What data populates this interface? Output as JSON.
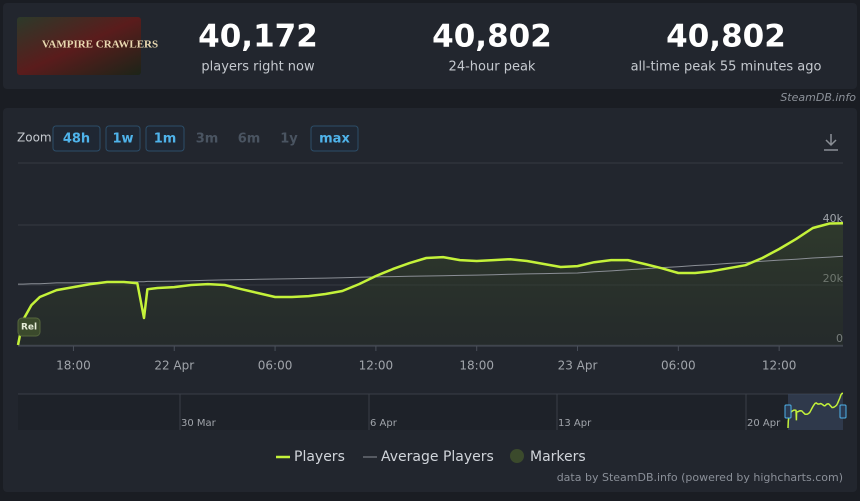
{
  "header": {
    "game_title": "VAMPIRE CRAWLERS",
    "stats": [
      {
        "value": "40,172",
        "label": "players right now"
      },
      {
        "value": "40,802",
        "label": "24-hour peak"
      },
      {
        "value": "40,802",
        "label": "all-time peak 55 minutes ago"
      }
    ]
  },
  "source": "SteamDB.info",
  "zoom": {
    "label": "Zoom",
    "buttons": [
      {
        "label": "48h",
        "enabled": true
      },
      {
        "label": "1w",
        "enabled": true
      },
      {
        "label": "1m",
        "enabled": true
      },
      {
        "label": "3m",
        "enabled": false
      },
      {
        "label": "6m",
        "enabled": false
      },
      {
        "label": "1y",
        "enabled": false
      },
      {
        "label": "max",
        "enabled": true
      }
    ]
  },
  "chart_data": {
    "type": "line",
    "x": [
      14.7,
      15,
      15.5,
      16,
      17,
      18,
      19,
      20,
      21,
      21.8,
      22.2,
      22.4,
      23,
      24,
      25,
      26,
      27,
      28,
      29,
      30,
      31,
      32,
      33,
      34,
      35,
      36,
      37,
      38,
      39,
      40,
      41,
      42,
      43,
      44,
      45,
      46,
      47,
      48,
      49,
      50,
      51,
      52,
      53,
      54,
      55,
      56,
      57,
      58,
      59,
      60,
      61,
      62,
      63,
      63.8
    ],
    "series": [
      {
        "name": "Players",
        "color": "#c4f23a",
        "values": [
          0,
          8300,
          13300,
          16000,
          18300,
          19300,
          20300,
          21000,
          21000,
          20600,
          9000,
          18600,
          19000,
          19300,
          20000,
          20300,
          20000,
          18600,
          17300,
          16000,
          16000,
          16300,
          17000,
          18000,
          20300,
          23000,
          25300,
          27300,
          29000,
          29300,
          28300,
          28000,
          28300,
          28600,
          28000,
          27000,
          26000,
          26300,
          27600,
          28300,
          28300,
          27000,
          25600,
          24000,
          24000,
          24600,
          25600,
          26600,
          29000,
          32000,
          35300,
          39000,
          40500,
          40600
        ]
      },
      {
        "name": "Average Players",
        "color": "#8a8e95",
        "values": [
          20300,
          20300,
          20400,
          20400,
          20700,
          20700,
          20800,
          20900,
          21000,
          21100,
          21100,
          21200,
          21200,
          21300,
          21400,
          21600,
          21700,
          21800,
          21900,
          22000,
          22100,
          22200,
          22300,
          22400,
          22600,
          22700,
          22800,
          22900,
          23000,
          23100,
          23200,
          23300,
          23400,
          23600,
          23700,
          23800,
          23900,
          24000,
          24400,
          24700,
          25100,
          25400,
          25800,
          26100,
          26500,
          26800,
          27200,
          27500,
          27900,
          28300,
          28600,
          29000,
          29300,
          29600
        ]
      }
    ],
    "markers": {
      "name": "Markers",
      "color": "#3b4a2c",
      "points": [
        {
          "x": 14.7,
          "label": "Rel"
        }
      ]
    },
    "xlim": [
      14.7,
      63.8
    ],
    "xticks": [
      {
        "value": 18,
        "label": "18:00"
      },
      {
        "value": 24,
        "label": "22 Apr"
      },
      {
        "value": 30,
        "label": "06:00"
      },
      {
        "value": 36,
        "label": "12:00"
      },
      {
        "value": 42,
        "label": "18:00"
      },
      {
        "value": 48,
        "label": "23 Apr"
      },
      {
        "value": 54,
        "label": "06:00"
      },
      {
        "value": 60,
        "label": "12:00"
      }
    ],
    "ylim": [
      0,
      60000
    ],
    "yticks": [
      0,
      {
        "value": 20000,
        "label": "20k"
      },
      {
        "value": 40000,
        "label": "40k"
      }
    ],
    "grid": true,
    "navigator": {
      "ticks": [
        "30 Mar",
        "6 Apr",
        "13 Apr",
        "20 Apr"
      ]
    },
    "credits": "data by SteamDB.info (powered by highcharts.com)"
  }
}
